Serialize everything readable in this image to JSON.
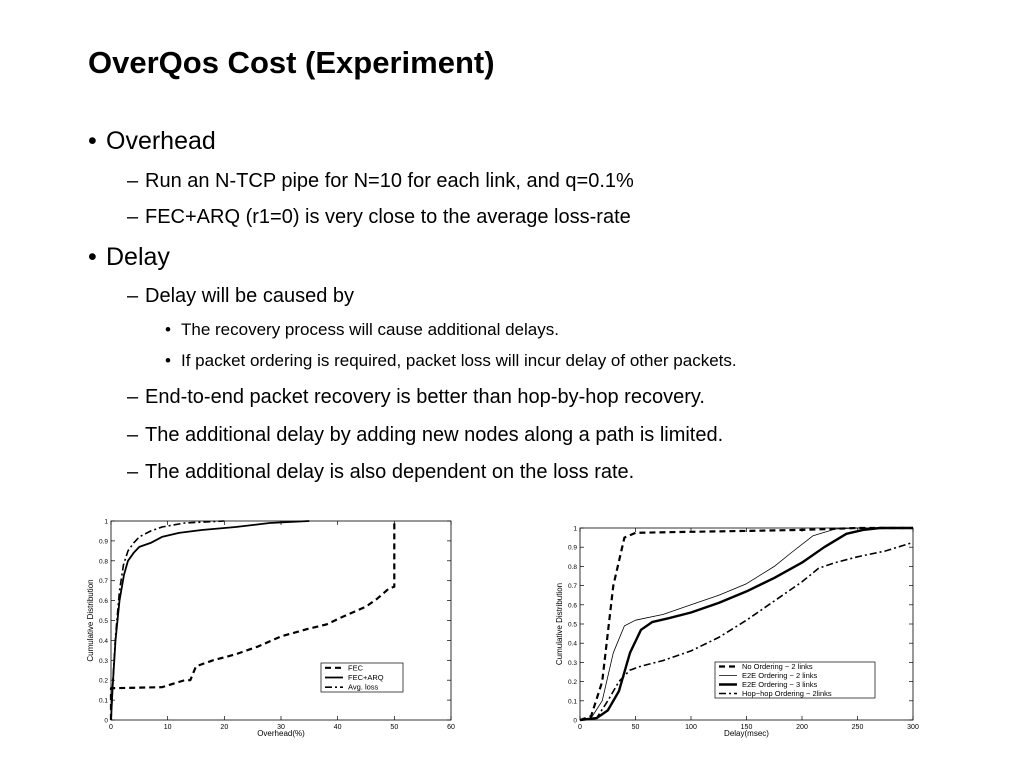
{
  "slide": {
    "title": "OverQos Cost (Experiment)",
    "bullets": {
      "overhead": "Overhead",
      "overhead_1": "Run an N-TCP pipe for N=10 for each link, and q=0.1%",
      "overhead_2": "FEC+ARQ (r1=0) is very close to the average loss-rate",
      "delay": "Delay",
      "delay_1": "Delay will be caused by",
      "delay_1a": "The recovery process will cause additional delays.",
      "delay_1b": "If packet ordering is required, packet loss will incur delay of other packets.",
      "delay_2": "End-to-end packet recovery is better than hop-by-hop recovery.",
      "delay_3": "The additional delay by adding new nodes along a path is limited.",
      "delay_4": "The additional delay is also dependent on the loss rate."
    },
    "markers": {
      "l1": "•",
      "l2": "–",
      "l3": "•"
    }
  },
  "chart_data": [
    {
      "type": "line",
      "xlabel": "Overhead(%)",
      "ylabel": "Cumulative Distribution",
      "xlim": [
        0,
        60
      ],
      "ylim": [
        0,
        1
      ],
      "x_ticks": [
        0,
        10,
        20,
        30,
        40,
        50,
        60
      ],
      "y_ticks": [
        0,
        0.1,
        0.2,
        0.3,
        0.4,
        0.5,
        0.6,
        0.7,
        0.8,
        0.9,
        1
      ],
      "legend_position": "bottom-right",
      "series": [
        {
          "name": "FEC",
          "style": "dashed",
          "points": [
            [
              0,
              0
            ],
            [
              0,
              0.16
            ],
            [
              9,
              0.165
            ],
            [
              13,
              0.2
            ],
            [
              14,
              0.2
            ],
            [
              15,
              0.27
            ],
            [
              18,
              0.3
            ],
            [
              22,
              0.33
            ],
            [
              26,
              0.37
            ],
            [
              30,
              0.42
            ],
            [
              35,
              0.46
            ],
            [
              38,
              0.48
            ],
            [
              41,
              0.52
            ],
            [
              45,
              0.57
            ],
            [
              47,
              0.61
            ],
            [
              49,
              0.66
            ],
            [
              50,
              0.67
            ],
            [
              50,
              1
            ]
          ]
        },
        {
          "name": "FEC+ARQ",
          "style": "solid",
          "points": [
            [
              0,
              0
            ],
            [
              0.3,
              0.17
            ],
            [
              0.8,
              0.4
            ],
            [
              1.5,
              0.6
            ],
            [
              2.3,
              0.73
            ],
            [
              3,
              0.8
            ],
            [
              4,
              0.84
            ],
            [
              5,
              0.87
            ],
            [
              7,
              0.89
            ],
            [
              9,
              0.92
            ],
            [
              12,
              0.94
            ],
            [
              16,
              0.955
            ],
            [
              22,
              0.97
            ],
            [
              28,
              0.99
            ],
            [
              35,
              1
            ]
          ]
        },
        {
          "name": "Avg. loss",
          "style": "dashdot",
          "points": [
            [
              0,
              0
            ],
            [
              0.3,
              0.18
            ],
            [
              0.8,
              0.42
            ],
            [
              1.5,
              0.65
            ],
            [
              2.2,
              0.78
            ],
            [
              3,
              0.85
            ],
            [
              4,
              0.89
            ],
            [
              5,
              0.92
            ],
            [
              7,
              0.95
            ],
            [
              9,
              0.97
            ],
            [
              13,
              0.99
            ],
            [
              20,
              1
            ]
          ]
        }
      ]
    },
    {
      "type": "line",
      "xlabel": "Delay(msec)",
      "ylabel": "Cumulative Distribution",
      "xlim": [
        0,
        300
      ],
      "ylim": [
        0,
        1
      ],
      "x_ticks": [
        0,
        50,
        100,
        150,
        200,
        250,
        300
      ],
      "y_ticks": [
        0,
        0.1,
        0.2,
        0.3,
        0.4,
        0.5,
        0.6,
        0.7,
        0.8,
        0.9,
        1
      ],
      "legend_position": "bottom-right",
      "series": [
        {
          "name": "No Ordering − 2 links",
          "style": "dashed",
          "points": [
            [
              0,
              0
            ],
            [
              10,
              0.02
            ],
            [
              20,
              0.2
            ],
            [
              30,
              0.7
            ],
            [
              40,
              0.95
            ],
            [
              50,
              0.975
            ],
            [
              100,
              0.98
            ],
            [
              150,
              0.985
            ],
            [
              200,
              0.99
            ],
            [
              250,
              1
            ],
            [
              300,
              1
            ]
          ]
        },
        {
          "name": "E2E Ordering − 2 links",
          "style": "thin",
          "points": [
            [
              0,
              0
            ],
            [
              10,
              0.01
            ],
            [
              20,
              0.1
            ],
            [
              30,
              0.35
            ],
            [
              40,
              0.49
            ],
            [
              50,
              0.52
            ],
            [
              75,
              0.55
            ],
            [
              100,
              0.6
            ],
            [
              125,
              0.65
            ],
            [
              150,
              0.71
            ],
            [
              175,
              0.8
            ],
            [
              190,
              0.87
            ],
            [
              210,
              0.96
            ],
            [
              230,
              0.995
            ],
            [
              250,
              1
            ],
            [
              300,
              1
            ]
          ]
        },
        {
          "name": "E2E Ordering − 3 links",
          "style": "bold",
          "points": [
            [
              0,
              0
            ],
            [
              15,
              0.01
            ],
            [
              25,
              0.05
            ],
            [
              35,
              0.15
            ],
            [
              45,
              0.35
            ],
            [
              55,
              0.47
            ],
            [
              65,
              0.51
            ],
            [
              80,
              0.53
            ],
            [
              100,
              0.56
            ],
            [
              125,
              0.61
            ],
            [
              150,
              0.67
            ],
            [
              175,
              0.74
            ],
            [
              200,
              0.82
            ],
            [
              220,
              0.9
            ],
            [
              240,
              0.97
            ],
            [
              255,
              0.99
            ],
            [
              270,
              1
            ],
            [
              300,
              1
            ]
          ]
        },
        {
          "name": "Hop−hop Ordering − 2links",
          "style": "dashdot",
          "points": [
            [
              0,
              0
            ],
            [
              15,
              0.01
            ],
            [
              25,
              0.1
            ],
            [
              35,
              0.2
            ],
            [
              45,
              0.26
            ],
            [
              55,
              0.28
            ],
            [
              75,
              0.31
            ],
            [
              100,
              0.36
            ],
            [
              125,
              0.43
            ],
            [
              150,
              0.52
            ],
            [
              175,
              0.62
            ],
            [
              200,
              0.72
            ],
            [
              215,
              0.79
            ],
            [
              230,
              0.82
            ],
            [
              250,
              0.85
            ],
            [
              275,
              0.88
            ],
            [
              300,
              0.925
            ]
          ]
        }
      ]
    }
  ]
}
